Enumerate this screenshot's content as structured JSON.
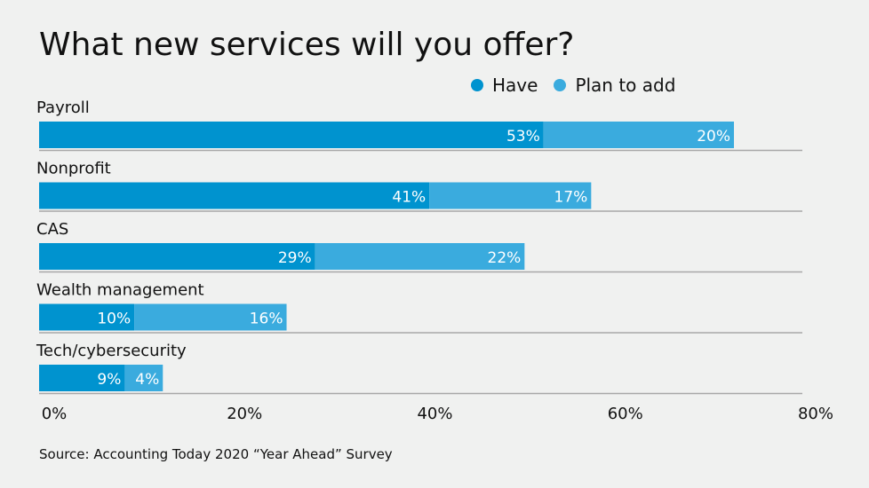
{
  "chart_data": {
    "type": "bar",
    "orientation": "horizontal",
    "stacked": true,
    "title": "What new services will you offer?",
    "categories": [
      "Payroll",
      "Nonprofit",
      "CAS",
      "Wealth management",
      "Tech/cybersecurity"
    ],
    "series": [
      {
        "name": "Have",
        "values": [
          53,
          41,
          29,
          10,
          9
        ],
        "color": "#0093cf"
      },
      {
        "name": "Plan to add",
        "values": [
          20,
          17,
          22,
          16,
          4
        ],
        "color": "#3aabde"
      }
    ],
    "data_labels": [
      [
        "53%",
        "41%",
        "29%",
        "10%",
        "9%"
      ],
      [
        "20%",
        "17%",
        "22%",
        "16%",
        "4%"
      ]
    ],
    "xlim": [
      0,
      80
    ],
    "x_ticks": [
      "0%",
      "20%",
      "40%",
      "60%",
      "80%"
    ],
    "legend_position": "top-right",
    "grid": false
  },
  "source": "Source: Accounting Today 2020 “Year Ahead” Survey"
}
